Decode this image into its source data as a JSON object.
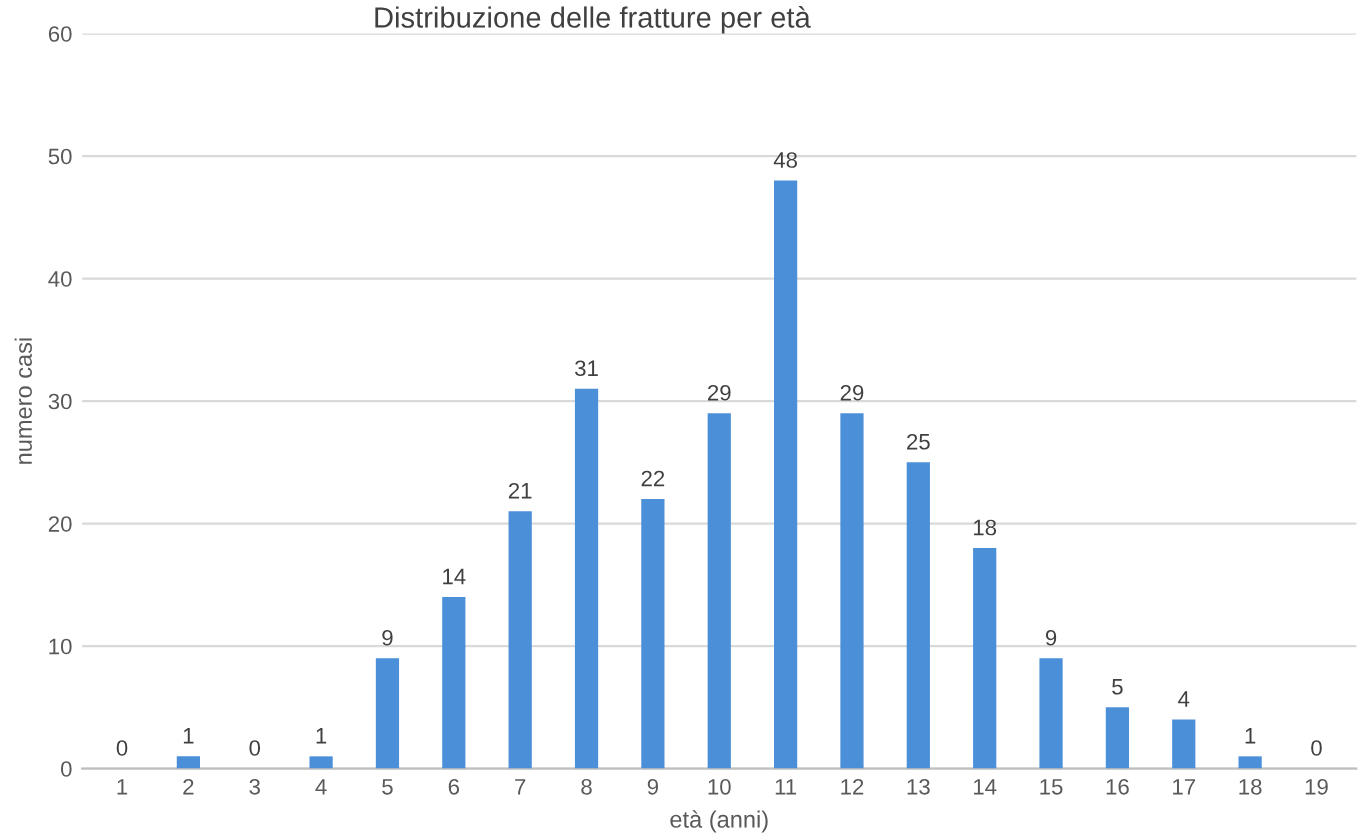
{
  "chart_data": {
    "type": "bar",
    "title": "Distribuzione delle fratture per età",
    "xlabel": "età (anni)",
    "ylabel": "numero casi",
    "categories": [
      "1",
      "2",
      "3",
      "4",
      "5",
      "6",
      "7",
      "8",
      "9",
      "10",
      "11",
      "12",
      "13",
      "14",
      "15",
      "16",
      "17",
      "18",
      "19"
    ],
    "values": [
      0,
      1,
      0,
      1,
      9,
      14,
      21,
      31,
      22,
      29,
      48,
      29,
      25,
      18,
      9,
      5,
      4,
      1,
      0
    ],
    "color": "#4a8fd8",
    "ylim": [
      0,
      60
    ],
    "yticks": [
      0,
      10,
      20,
      30,
      40,
      50,
      60
    ],
    "grid": "y",
    "data_labels": true,
    "legend": false
  }
}
